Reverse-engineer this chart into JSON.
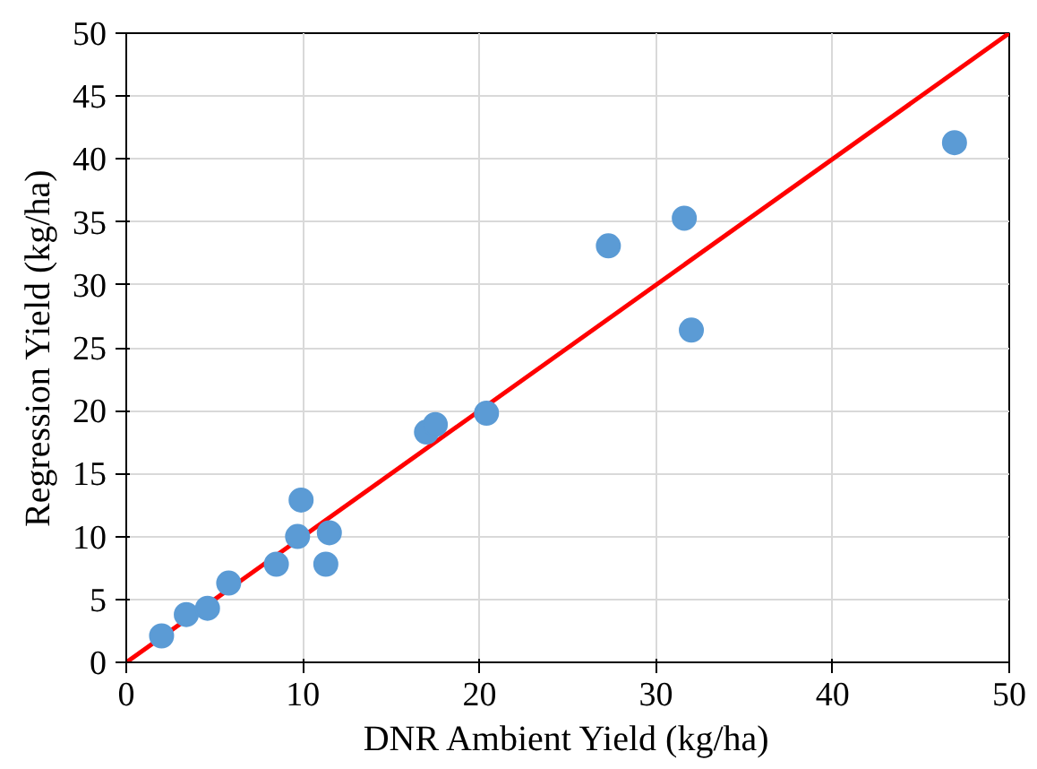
{
  "chart_data": {
    "type": "scatter",
    "xlabel": "DNR Ambient Yield (kg/ha)",
    "ylabel": "Regression Yield (kg/ha)",
    "series": [
      {
        "color": "#5b9bd5",
        "marker": "circle",
        "x": [
          2.0,
          3.4,
          4.6,
          5.8,
          8.5,
          9.9,
          9.7,
          11.3,
          11.5,
          17.0,
          17.5,
          20.4,
          27.3,
          31.6,
          32.0,
          46.9
        ],
        "values": [
          2.1,
          3.8,
          4.3,
          6.3,
          7.8,
          12.9,
          10.0,
          7.8,
          10.3,
          18.3,
          18.9,
          19.8,
          33.1,
          35.3,
          26.4,
          41.3
        ]
      },
      {
        "type": "line",
        "color": "#ff0000",
        "x": [
          0,
          50
        ],
        "values": [
          0,
          50
        ]
      }
    ],
    "xlim": [
      0,
      50
    ],
    "xticks": [
      0,
      10,
      20,
      30,
      40,
      50
    ],
    "ylim": [
      0,
      50
    ],
    "yticks": [
      0,
      5,
      10,
      15,
      20,
      25,
      30,
      35,
      40,
      45,
      50
    ],
    "grid": true
  }
}
